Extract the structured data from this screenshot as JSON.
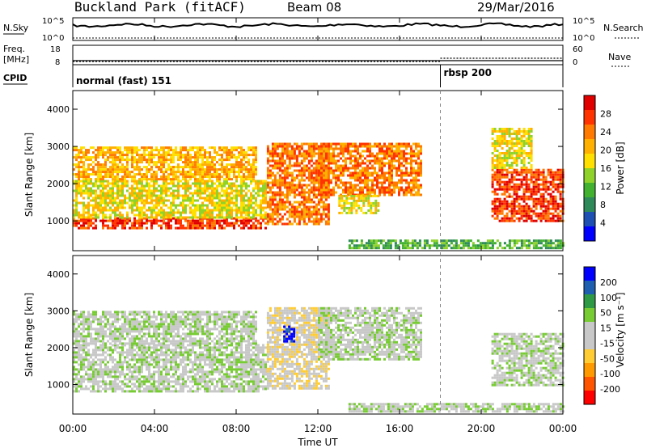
{
  "header": {
    "station": "Buckland Park (fitACF)",
    "beam": "Beam 08",
    "date": "29/Mar/2016"
  },
  "strips": {
    "nsky_label": "N.Sky",
    "nsky_tick_top": "10^5",
    "nsky_tick_bottom": "10^0",
    "nsearch_label": "N.Search",
    "nsearch_tick_top": "10^5",
    "nsearch_tick_bottom": "10^0",
    "freq_label": "Freq.",
    "freq_unit": "[MHz]",
    "freq_tick_top": "18",
    "freq_tick_bottom": "8",
    "nave_label": "Nave",
    "nave_tick_top": "60",
    "nave_tick_bottom": "0",
    "cpid_label": "CPID",
    "cpid_programs": [
      {
        "name": "normal (fast) 151",
        "start_hour": 0
      },
      {
        "name": "rbsp 200",
        "start_hour": 18
      }
    ]
  },
  "x_axis": {
    "label": "Time UT",
    "ticks": [
      "00:00",
      "04:00",
      "08:00",
      "12:00",
      "16:00",
      "20:00",
      "00:00"
    ],
    "range_hours": [
      0,
      24
    ]
  },
  "colors": {
    "power_scale": [
      "#0000ff",
      "#1e50b4",
      "#2f8a5a",
      "#41b12f",
      "#8fd22a",
      "#ffe000",
      "#ffb000",
      "#ff7a00",
      "#ff3300",
      "#e00000"
    ],
    "velocity_scale": [
      "#ff0000",
      "#ff5500",
      "#ff9900",
      "#ffcc33",
      "#c8c8c8",
      "#c8c8c8",
      "#77cc33",
      "#2e9a46",
      "#1f5fb0",
      "#0000ff"
    ]
  },
  "chart_data": [
    {
      "type": "heatmap",
      "panel": "power",
      "ylabel": "Slant Range [km]",
      "y_ticks": [
        "1000",
        "2000",
        "3000",
        "4000"
      ],
      "ylim": [
        200,
        4500
      ],
      "xlim_hours": [
        0,
        24
      ],
      "colorbar": {
        "label": "Power [dB]",
        "ticks": [
          "4",
          "8",
          "12",
          "16",
          "20",
          "24",
          "28"
        ],
        "range": [
          0,
          30
        ]
      },
      "echo_regions": [
        {
          "name": "near-range band",
          "t0": 0,
          "t1": 9.5,
          "r0": 800,
          "r1": 1100,
          "value": 27
        },
        {
          "name": "main layer",
          "t0": 0,
          "t1": 9.5,
          "r0": 1100,
          "r1": 2100,
          "value": 18
        },
        {
          "name": "upper layer",
          "t0": 0,
          "t1": 9.0,
          "r0": 2100,
          "r1": 3000,
          "value": 21
        },
        {
          "name": "rising feature",
          "t0": 9.5,
          "t1": 12.5,
          "r0": 900,
          "r1": 3100,
          "value": 24
        },
        {
          "name": "descending tongue",
          "t0": 12.0,
          "t1": 17.0,
          "r0": 1700,
          "r1": 3100,
          "value": 22
        },
        {
          "name": "lower patch",
          "t0": 13.0,
          "t1": 15.0,
          "r0": 1200,
          "r1": 1700,
          "value": 18
        },
        {
          "name": "ground scatter band",
          "t0": 13.5,
          "t1": 24,
          "r0": 250,
          "r1": 500,
          "value": 10
        },
        {
          "name": "evening scatter",
          "t0": 20.5,
          "t1": 24,
          "r0": 1000,
          "r1": 2400,
          "value": 26
        },
        {
          "name": "evening upper",
          "t0": 20.5,
          "t1": 22.5,
          "r0": 2400,
          "r1": 3500,
          "value": 16
        }
      ]
    },
    {
      "type": "heatmap",
      "panel": "velocity",
      "ylabel": "Slant Range [km]",
      "y_ticks": [
        "1000",
        "2000",
        "3000",
        "4000"
      ],
      "ylim": [
        200,
        4500
      ],
      "xlim_hours": [
        0,
        24
      ],
      "colorbar": {
        "label": "Velocity [m s⁻¹]",
        "ticks": [
          "200",
          "100",
          "50",
          "15",
          "-15",
          "-50",
          "-100",
          "-200"
        ]
      },
      "echo_regions": [
        {
          "name": "main layer",
          "t0": 0,
          "t1": 9.5,
          "r0": 800,
          "r1": 2100,
          "value": 0
        },
        {
          "name": "upper layer",
          "t0": 0,
          "t1": 9.0,
          "r0": 2100,
          "r1": 3000,
          "value": 0
        },
        {
          "name": "rising feature",
          "t0": 9.5,
          "t1": 12.5,
          "r0": 900,
          "r1": 3100,
          "value": -40
        },
        {
          "name": "blue streak",
          "t0": 10.3,
          "t1": 10.8,
          "r0": 2200,
          "r1": 2600,
          "value": 200
        },
        {
          "name": "descending tongue",
          "t0": 12.0,
          "t1": 17.0,
          "r0": 1700,
          "r1": 3100,
          "value": 0
        },
        {
          "name": "ground scatter band",
          "t0": 13.5,
          "t1": 24,
          "r0": 250,
          "r1": 500,
          "value": 20
        },
        {
          "name": "evening scatter",
          "t0": 20.5,
          "t1": 24,
          "r0": 1000,
          "r1": 2400,
          "value": 0
        }
      ]
    }
  ]
}
